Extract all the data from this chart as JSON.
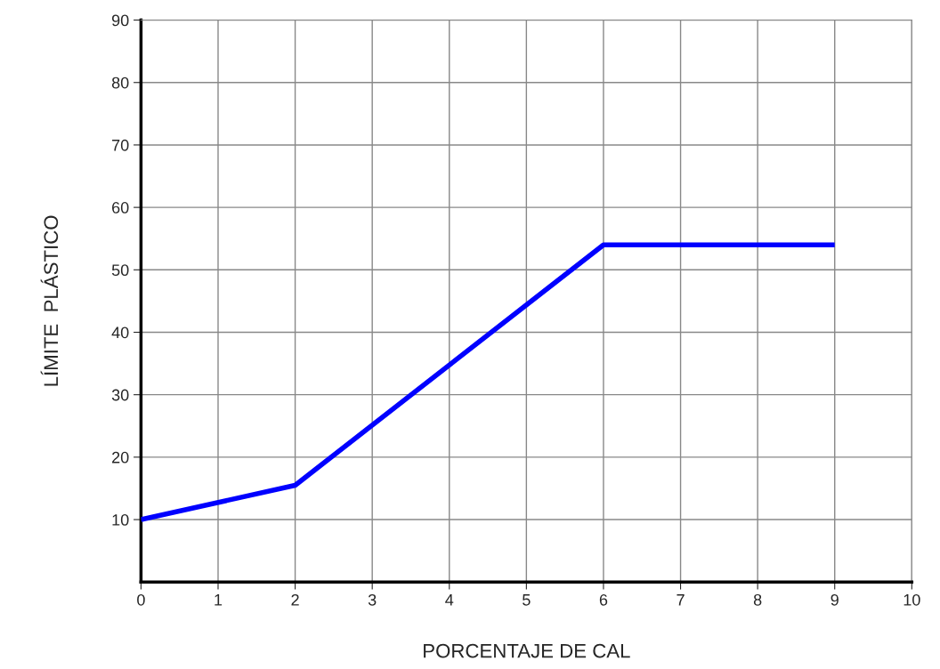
{
  "chart_data": {
    "type": "line",
    "xlabel": "PORCENTAJE DE CAL",
    "ylabel": "LÍMITE  PLÁSTICO",
    "x": [
      0,
      2,
      6,
      9
    ],
    "series": [
      {
        "color": "#0000ff",
        "values": [
          10,
          15.5,
          54,
          54
        ]
      }
    ],
    "xlim": [
      0,
      10
    ],
    "xticks": [
      0,
      1,
      2,
      3,
      4,
      5,
      6,
      7,
      8,
      9,
      10
    ],
    "ylim": [
      0,
      90
    ],
    "yticks": [
      10,
      20,
      30,
      40,
      50,
      60,
      70,
      80,
      90
    ],
    "grid": true,
    "marker": "none",
    "line_style": "solid"
  }
}
